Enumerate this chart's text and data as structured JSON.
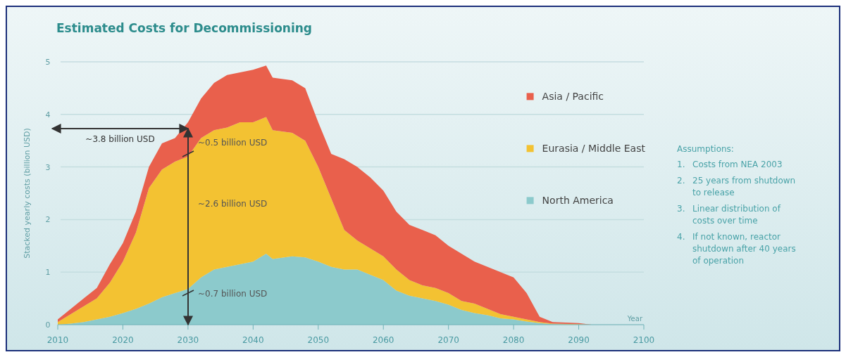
{
  "chart_data": {
    "type": "area",
    "stacked": true,
    "title": "Estimated Costs for Decommissioning",
    "xlabel": "Year",
    "ylabel": "Stacked yearly costs (billion USD)",
    "x": [
      2010,
      2012,
      2014,
      2016,
      2018,
      2020,
      2022,
      2024,
      2026,
      2028,
      2030,
      2032,
      2034,
      2036,
      2038,
      2040,
      2042,
      2043,
      2046,
      2048,
      2050,
      2052,
      2054,
      2056,
      2058,
      2060,
      2062,
      2064,
      2066,
      2068,
      2070,
      2072,
      2074,
      2076,
      2078,
      2080,
      2082,
      2084,
      2086,
      2090,
      2092
    ],
    "series": [
      {
        "name": "North America",
        "color": "#8ccacc",
        "values": [
          0,
          0.02,
          0.05,
          0.1,
          0.15,
          0.22,
          0.3,
          0.4,
          0.52,
          0.6,
          0.68,
          0.9,
          1.05,
          1.1,
          1.15,
          1.2,
          1.35,
          1.25,
          1.3,
          1.28,
          1.2,
          1.1,
          1.05,
          1.05,
          0.95,
          0.85,
          0.65,
          0.55,
          0.5,
          0.45,
          0.38,
          0.28,
          0.22,
          0.18,
          0.12,
          0.1,
          0.06,
          0.03,
          0.01,
          0,
          0
        ]
      },
      {
        "name": "Eurasia / Middle East",
        "color": "#f3c232",
        "values": [
          0.05,
          0.18,
          0.3,
          0.4,
          0.65,
          0.98,
          1.45,
          2.2,
          2.43,
          2.5,
          2.52,
          2.65,
          2.65,
          2.65,
          2.7,
          2.65,
          2.6,
          2.45,
          2.35,
          2.22,
          1.8,
          1.3,
          0.75,
          0.55,
          0.5,
          0.45,
          0.4,
          0.3,
          0.25,
          0.25,
          0.22,
          0.17,
          0.18,
          0.12,
          0.08,
          0.05,
          0.04,
          0.02,
          0.01,
          0.01,
          0
        ]
      },
      {
        "name": "Asia / Pacific",
        "color": "#e9604c",
        "values": [
          0.05,
          0.1,
          0.15,
          0.2,
          0.35,
          0.35,
          0.4,
          0.4,
          0.5,
          0.45,
          0.65,
          0.75,
          0.9,
          1.0,
          0.95,
          1.0,
          0.98,
          1.0,
          1.0,
          1.0,
          0.85,
          0.85,
          1.35,
          1.4,
          1.35,
          1.25,
          1.1,
          1.05,
          1.05,
          1.0,
          0.9,
          0.9,
          0.8,
          0.8,
          0.8,
          0.75,
          0.5,
          0.1,
          0.03,
          0.02,
          0
        ]
      }
    ],
    "xlim": [
      2010,
      2100
    ],
    "xticks": [
      2010,
      2020,
      2030,
      2040,
      2050,
      2060,
      2070,
      2080,
      2090,
      2100
    ],
    "ylim": [
      0,
      5
    ],
    "yticks": [
      0,
      1,
      2,
      3,
      4,
      5
    ],
    "grid": "y",
    "legend": "right",
    "annotations": [
      "~3.8 billion USD",
      "~0.5 billion USD",
      "~2.6 billion USD",
      "~0.7 billion USD",
      "Assumptions:",
      "1. Costs from NEA 2003",
      "2. 25 years from shutdown to release",
      "3. Linear distribution of costs over time",
      "4. If not known, reactor shutdown after 40 years of operation"
    ]
  }
}
